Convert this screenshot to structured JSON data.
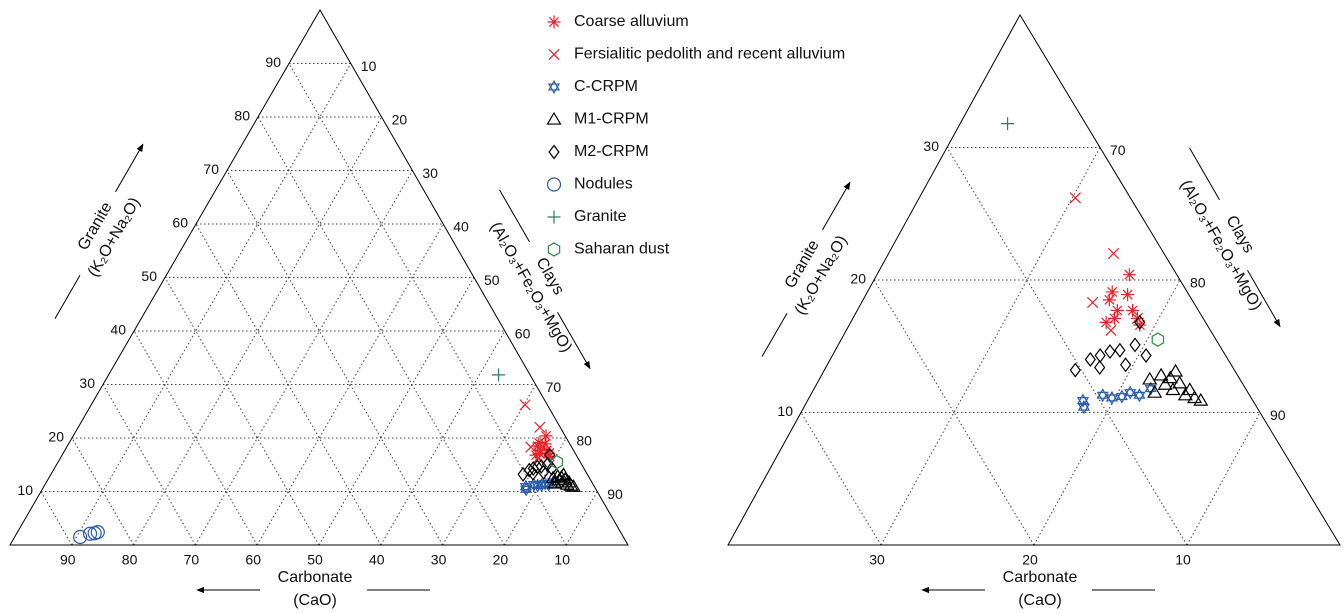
{
  "chart_data": [
    {
      "type": "ternary",
      "carbonate_label": "Carbonate",
      "carbonate_formula": "(CaO)",
      "granite_label": "Granite",
      "granite_formula": "(K₂O+Na₂O)",
      "clays_label": "Clays",
      "clays_formula": "(Al₂O₃+Fe₂O₃+MgO)",
      "carbonate_lim": [
        0,
        100
      ],
      "granite_lim": [
        0,
        100
      ],
      "clays_lim": [
        0,
        100
      ],
      "carbonate_ticks": [
        10,
        20,
        30,
        40,
        50,
        60,
        70,
        80,
        90
      ],
      "granite_ticks": [
        10,
        20,
        30,
        40,
        50,
        60,
        70,
        80,
        90
      ],
      "clays_ticks": [
        10,
        20,
        30,
        40,
        50,
        60,
        70,
        80,
        90
      ],
      "grid": true,
      "series": [
        {
          "name": "Coarse alluvium",
          "marker": "asterisk",
          "color": "#e8232a",
          "carbonate": [
            3.1,
            4.9,
            5.4,
            5.3,
            6.5,
            4.3,
            4.3,
            4.4,
            4.0,
            5.8
          ],
          "granite": [
            20.4,
            19.1,
            18.5,
            17.7,
            16.8,
            17.7,
            17.1,
            16.6,
            18.9,
            17.1
          ]
        },
        {
          "name": "Fersialitic pedolith and recent alluvium",
          "marker": "x",
          "color": "#e8232a",
          "carbonate": [
            3.6,
            3.3,
            6.6,
            6.5,
            4.3
          ],
          "granite": [
            26.2,
            22.0,
            18.3,
            16.2,
            17.1
          ]
        },
        {
          "name": "C-CRPM",
          "marker": "hexagram",
          "color": "#2a5caa",
          "carbonate": [
            11.1,
            11.3,
            9.6,
            9.1,
            8.4,
            7.7,
            7.2,
            6.2
          ],
          "granite": [
            10.9,
            10.4,
            11.3,
            11.1,
            11.2,
            11.5,
            11.3,
            11.8
          ]
        },
        {
          "name": "M1-CRPM",
          "marker": "triangle",
          "color": "#000000",
          "carbonate": [
            5.9,
            5.0,
            4.5,
            4.1,
            3.7,
            3.4,
            5.1,
            3.9,
            4.2,
            6.1,
            3.7,
            4.8
          ],
          "granite": [
            12.5,
            12.8,
            12.6,
            12.2,
            11.7,
            10.9,
            12.1,
            13.1,
            11.3,
            11.5,
            11.1,
            11.7
          ]
        },
        {
          "name": "M2-CRPM",
          "marker": "diamond",
          "color": "#000000",
          "carbonate": [
            10.4,
            9.0,
            8.2,
            7.4,
            6.7,
            5.5,
            5.2,
            8.7,
            6.9,
            4.3
          ],
          "granite": [
            13.2,
            14.0,
            14.3,
            14.6,
            14.7,
            15.1,
            14.3,
            13.4,
            13.6,
            16.8
          ]
        },
        {
          "name": "Nodules",
          "marker": "circle",
          "color": "#2a5caa",
          "carbonate": [
            87.9,
            86.0,
            85.2,
            84.6
          ],
          "granite": [
            1.5,
            2.1,
            2.2,
            2.4
          ]
        },
        {
          "name": "Granite",
          "marker": "plus",
          "color": "#2e7d5a",
          "carbonate": [
            5.1
          ],
          "granite": [
            31.8
          ]
        },
        {
          "name": "Saharan dust",
          "marker": "hexagon",
          "color": "#2e8b3e",
          "carbonate": [
            3.8
          ],
          "granite": [
            15.5
          ]
        }
      ]
    },
    {
      "type": "ternary",
      "carbonate_label": "Carbonate",
      "carbonate_formula": "(CaO)",
      "granite_label": "Granite",
      "granite_formula": "(K₂O+Na₂O)",
      "clays_label": "Clays",
      "clays_formula": "(Al₂O₃+Fe₂O₃+MgO)",
      "carbonate_lim": [
        0,
        40
      ],
      "granite_lim": [
        0,
        40
      ],
      "clays_lim": [
        60,
        100
      ],
      "carbonate_ticks": [
        10,
        20,
        30
      ],
      "granite_ticks": [
        10,
        20,
        30
      ],
      "clays_ticks": [
        70,
        80,
        90
      ],
      "grid": true,
      "series": [
        {
          "marker": "asterisk",
          "color": "#e8232a",
          "carbonate": [
            3.1,
            4.9,
            5.4,
            5.3,
            6.5,
            4.3,
            4.3,
            4.4,
            4.0,
            5.8
          ],
          "granite": [
            20.4,
            19.1,
            18.5,
            17.7,
            16.8,
            17.7,
            17.1,
            16.6,
            18.9,
            17.1
          ]
        },
        {
          "marker": "x",
          "color": "#e8232a",
          "carbonate": [
            3.6,
            3.3,
            6.6,
            6.5,
            4.3
          ],
          "granite": [
            26.2,
            22.0,
            18.3,
            16.2,
            17.1
          ]
        },
        {
          "marker": "hexagram",
          "color": "#2a5caa",
          "carbonate": [
            11.1,
            11.3,
            9.6,
            9.1,
            8.4,
            7.7,
            7.2,
            6.2
          ],
          "granite": [
            10.9,
            10.4,
            11.3,
            11.1,
            11.2,
            11.5,
            11.3,
            11.8
          ]
        },
        {
          "marker": "triangle",
          "color": "#000000",
          "carbonate": [
            5.9,
            5.0,
            4.5,
            4.1,
            3.7,
            3.4,
            5.1,
            3.9,
            4.2,
            6.1,
            3.7,
            4.8
          ],
          "granite": [
            12.5,
            12.8,
            12.6,
            12.2,
            11.7,
            10.9,
            12.1,
            13.1,
            11.3,
            11.5,
            11.1,
            11.7
          ]
        },
        {
          "marker": "diamond",
          "color": "#000000",
          "carbonate": [
            10.4,
            9.0,
            8.2,
            7.4,
            6.7,
            5.5,
            5.2,
            8.7,
            6.9,
            4.3
          ],
          "granite": [
            13.2,
            14.0,
            14.3,
            14.6,
            14.7,
            15.1,
            14.3,
            13.4,
            13.6,
            16.8
          ]
        },
        {
          "marker": "plus",
          "color": "#2e7d5a",
          "carbonate": [
            5.1
          ],
          "granite": [
            31.8
          ]
        },
        {
          "marker": "hexagon",
          "color": "#2e8b3e",
          "carbonate": [
            3.8
          ],
          "granite": [
            15.5
          ]
        }
      ]
    }
  ]
}
